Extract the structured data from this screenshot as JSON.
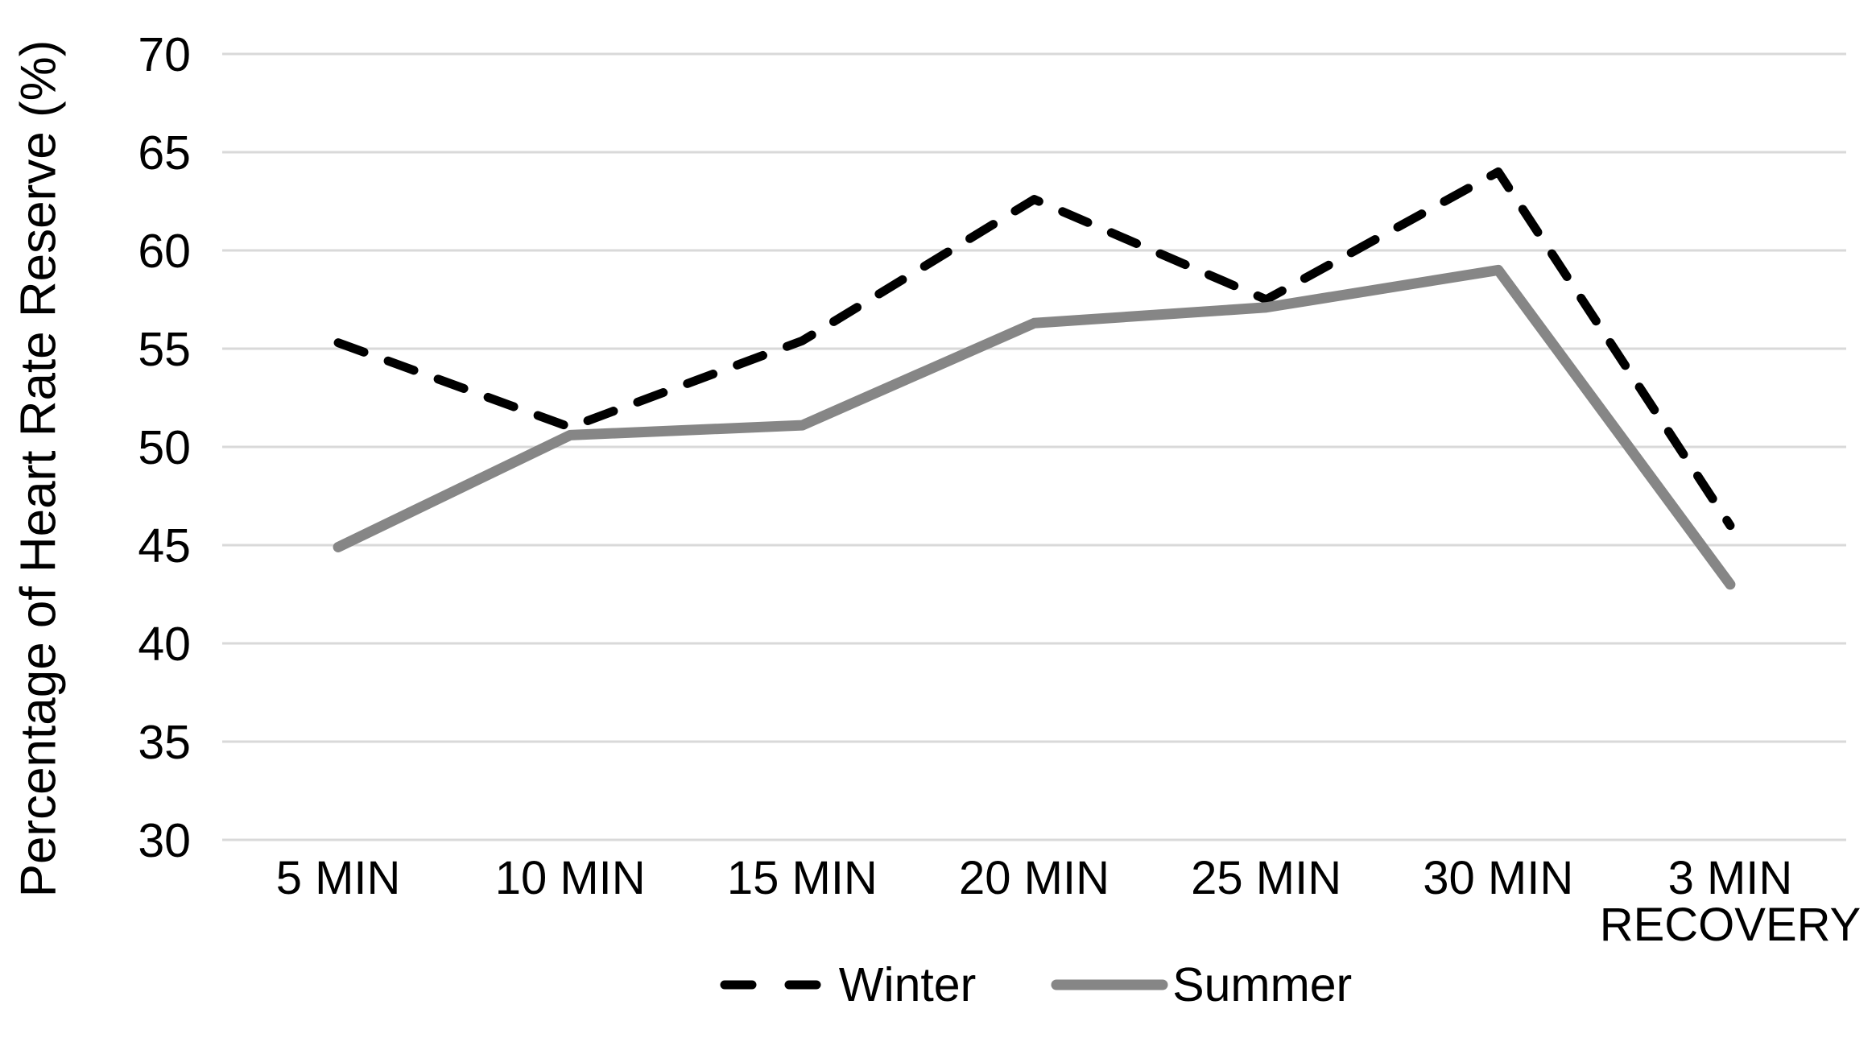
{
  "chart_data": {
    "type": "line",
    "title": "",
    "xlabel": "",
    "ylabel": "Percentage of Heart Rate Reserve (%)",
    "categories": [
      "5 MIN",
      "10 MIN",
      "15 MIN",
      "20 MIN",
      "25 MIN",
      "30 MIN",
      "3 MIN\nRECOVERY"
    ],
    "series": [
      {
        "name": "Winter",
        "color": "#000000",
        "style": "dashed",
        "values": [
          55.3,
          51.0,
          55.4,
          62.6,
          57.5,
          64.0,
          46.0
        ]
      },
      {
        "name": "Summer",
        "color": "#868686",
        "style": "solid",
        "values": [
          44.9,
          50.6,
          51.1,
          56.3,
          57.1,
          59.0,
          43.0
        ]
      }
    ],
    "y_ticks": [
      70,
      65,
      60,
      55,
      50,
      45,
      40,
      35,
      30
    ],
    "ylim": [
      30,
      70
    ],
    "grid": "horizontal",
    "gridline_color": "#d9d9d9",
    "legend_position": "bottom"
  }
}
